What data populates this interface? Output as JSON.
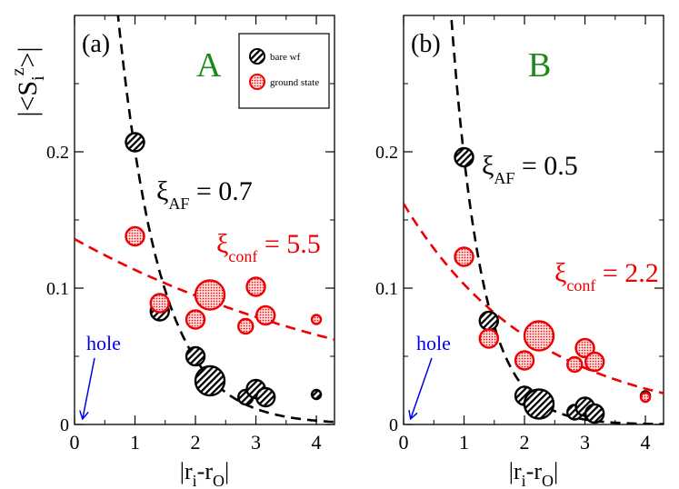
{
  "figure": {
    "ylabel": "|<S",
    "ylabel_sub": "i",
    "ylabel_sup": "z",
    "ylabel_end": ">|",
    "legend": {
      "bare": "bare wf",
      "ground": "ground state"
    }
  },
  "colors": {
    "bare": "#000000",
    "ground": "#ee0000",
    "letter": "#1b8a1b",
    "hole": "#0000ee"
  },
  "chart_data": [
    {
      "type": "scatter",
      "panel_label": "(a)",
      "letter": "A",
      "xlabel": "|r_i - r_O|",
      "xlabel_parts": [
        "|r",
        "i",
        "-r",
        "O",
        "|"
      ],
      "ylabel": "|<S_i^z>|",
      "xlim": [
        0,
        4.3
      ],
      "ylim": [
        0,
        0.3
      ],
      "xticks": [
        "0",
        "1",
        "2",
        "3",
        "4"
      ],
      "yticks": [
        "0",
        "0.1",
        "0.2"
      ],
      "hole_label": "hole",
      "xi_af": {
        "symbol": "ξ",
        "sub": "AF",
        "value": "= 0.7"
      },
      "xi_conf": {
        "symbol": "ξ",
        "sub": "conf",
        "value": "= 5.5"
      },
      "series": [
        {
          "name": "bare wf",
          "points": [
            [
              1.0,
              0.207,
              1.0
            ],
            [
              1.41,
              0.083,
              1.0
            ],
            [
              2.0,
              0.05,
              1.0
            ],
            [
              2.24,
              0.032,
              1.6
            ],
            [
              2.83,
              0.02,
              0.8
            ],
            [
              3.0,
              0.026,
              1.0
            ],
            [
              3.16,
              0.02,
              1.0
            ],
            [
              4.0,
              0.022,
              0.5
            ]
          ]
        },
        {
          "name": "ground state",
          "points": [
            [
              1.0,
              0.138,
              1.0
            ],
            [
              1.41,
              0.089,
              1.0
            ],
            [
              2.0,
              0.077,
              1.0
            ],
            [
              2.24,
              0.095,
              1.6
            ],
            [
              2.83,
              0.072,
              0.8
            ],
            [
              3.0,
              0.101,
              1.0
            ],
            [
              3.16,
              0.08,
              1.0
            ],
            [
              4.0,
              0.077,
              0.5
            ]
          ]
        }
      ],
      "fits": [
        {
          "name": "xi_AF fit",
          "A": 0.838,
          "xi": 0.7,
          "color": "black"
        },
        {
          "name": "xi_conf fit",
          "A": 0.136,
          "xi": 5.5,
          "color": "red"
        }
      ]
    },
    {
      "type": "scatter",
      "panel_label": "(b)",
      "letter": "B",
      "xlabel": "|r_i - r_O|",
      "xlabel_parts": [
        "|r",
        "i",
        "-r",
        "O",
        "|"
      ],
      "ylabel": "|<S_i^z>|",
      "xlim": [
        0,
        4.3
      ],
      "ylim": [
        0,
        0.3
      ],
      "xticks": [
        "0",
        "1",
        "2",
        "3",
        "4"
      ],
      "yticks": [
        "0",
        "0.1",
        "0.2"
      ],
      "hole_label": "hole",
      "xi_af": {
        "symbol": "ξ",
        "sub": "AF",
        "value": "= 0.5"
      },
      "xi_conf": {
        "symbol": "ξ",
        "sub": "conf",
        "value": "= 2.2"
      },
      "series": [
        {
          "name": "bare wf",
          "points": [
            [
              1.0,
              0.196,
              1.0
            ],
            [
              1.41,
              0.076,
              1.0
            ],
            [
              2.0,
              0.021,
              1.0
            ],
            [
              2.24,
              0.015,
              1.6
            ],
            [
              2.83,
              0.009,
              0.8
            ],
            [
              3.0,
              0.013,
              1.0
            ],
            [
              3.16,
              0.008,
              1.0
            ],
            [
              4.0,
              0.021,
              0.5
            ]
          ]
        },
        {
          "name": "ground state",
          "points": [
            [
              1.0,
              0.123,
              1.0
            ],
            [
              1.41,
              0.063,
              1.0
            ],
            [
              2.0,
              0.047,
              1.0
            ],
            [
              2.24,
              0.065,
              1.6
            ],
            [
              2.83,
              0.044,
              0.8
            ],
            [
              3.0,
              0.056,
              1.0
            ],
            [
              3.16,
              0.046,
              1.0
            ],
            [
              4.0,
              0.02,
              0.5
            ]
          ]
        }
      ],
      "fits": [
        {
          "name": "xi_AF fit",
          "A": 1.45,
          "xi": 0.5,
          "color": "black"
        },
        {
          "name": "xi_conf fit",
          "A": 0.162,
          "xi": 2.2,
          "color": "red"
        }
      ]
    }
  ]
}
